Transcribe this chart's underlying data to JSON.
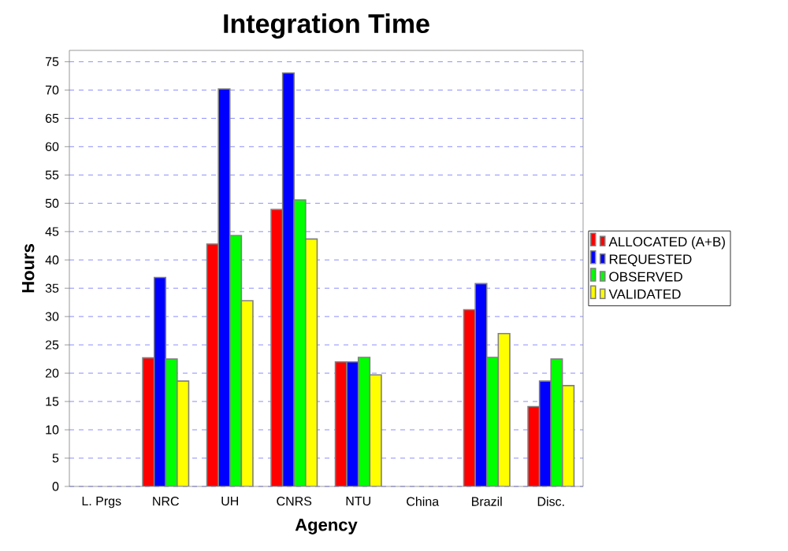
{
  "chart_data": {
    "type": "bar",
    "title": "Integration Time",
    "xlabel": "Agency",
    "ylabel": "Hours",
    "categories": [
      "L. Prgs",
      "NRC",
      "UH",
      "CNRS",
      "NTU",
      "China",
      "Brazil",
      "Disc."
    ],
    "series": [
      {
        "name": "ALLOCATED (A+B)",
        "color": "#ff0000",
        "values": [
          null,
          22.7,
          42.8,
          48.9,
          22.0,
          null,
          31.2,
          14.1
        ]
      },
      {
        "name": "REQUESTED",
        "color": "#0000ff",
        "values": [
          null,
          36.9,
          70.2,
          73.0,
          22.0,
          null,
          35.8,
          18.6
        ]
      },
      {
        "name": "OBSERVED",
        "color": "#00ff00",
        "values": [
          null,
          22.5,
          44.3,
          50.6,
          22.8,
          null,
          22.8,
          22.5
        ]
      },
      {
        "name": "VALIDATED",
        "color": "#ffff00",
        "values": [
          null,
          18.6,
          32.8,
          43.7,
          19.7,
          null,
          27.0,
          17.8
        ]
      }
    ],
    "ylim": [
      0,
      77
    ],
    "yticks": [
      0,
      5,
      10,
      15,
      20,
      25,
      30,
      35,
      40,
      45,
      50,
      55,
      60,
      65,
      70,
      75
    ],
    "grid": "y",
    "legend": "right"
  }
}
